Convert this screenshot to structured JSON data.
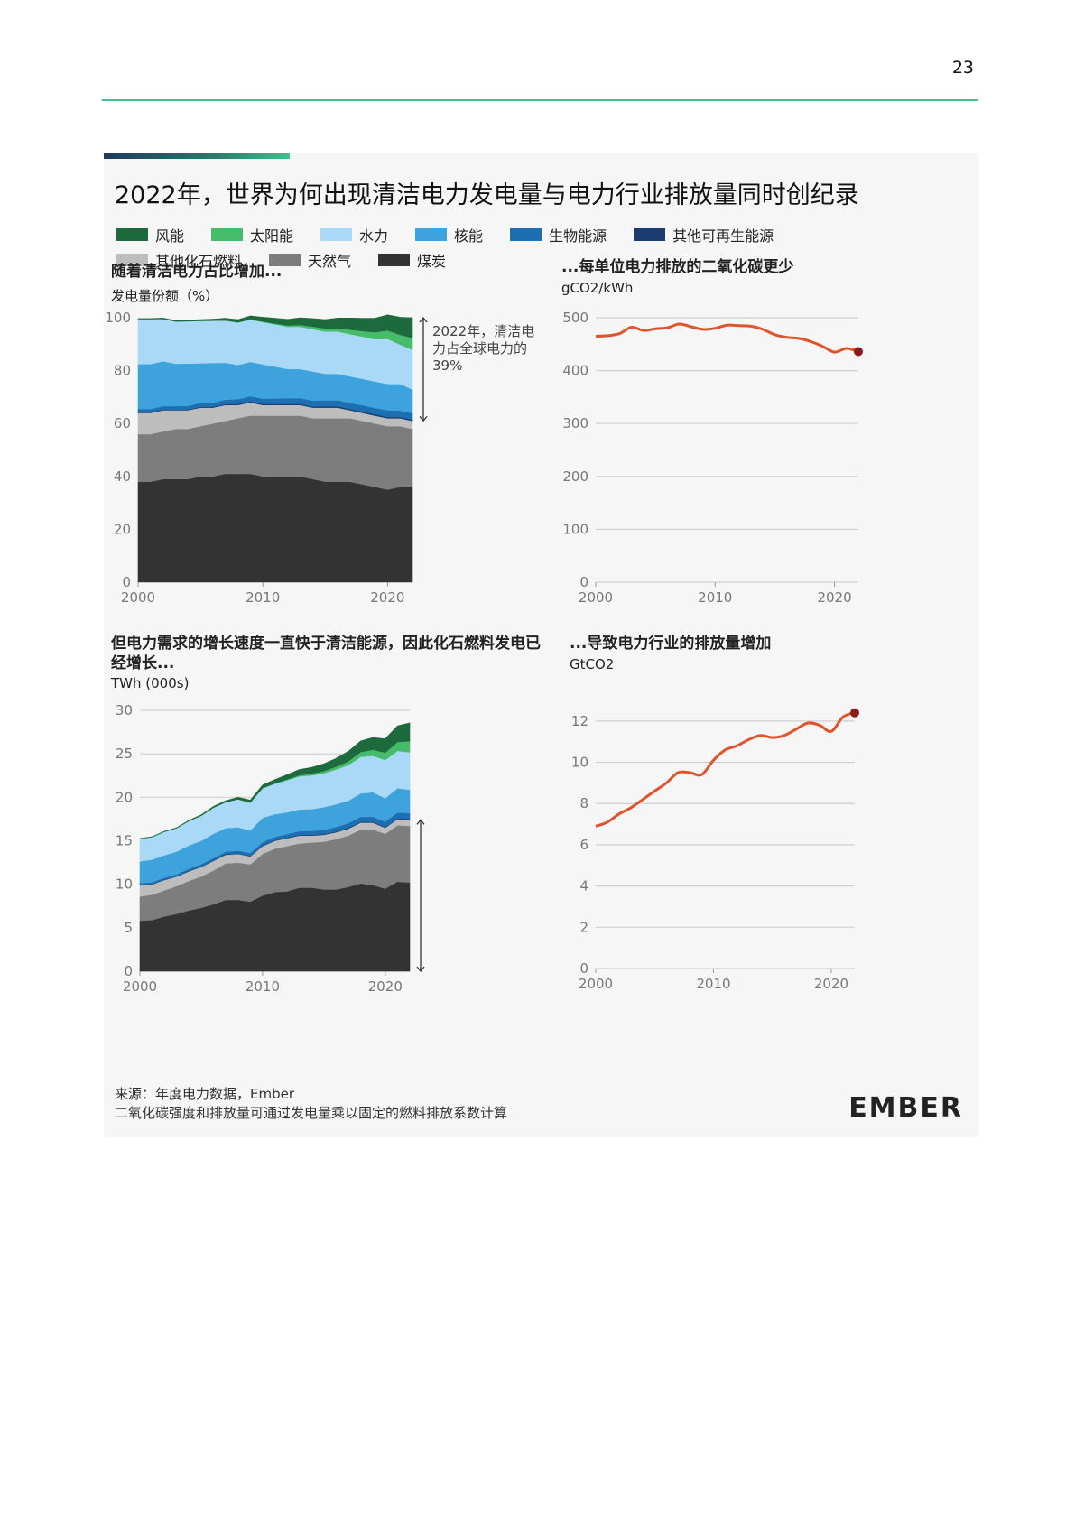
{
  "page": {
    "number": "23"
  },
  "figure": {
    "title": "2022年，世界为何出现清洁电力发电量与电力行业排放量同时创纪录",
    "legend": [
      {
        "label": "风能",
        "color": "#1d6a3c"
      },
      {
        "label": "太阳能",
        "color": "#46bb6a"
      },
      {
        "label": "水力",
        "color": "#a9d9f6"
      },
      {
        "label": "核能",
        "color": "#3ea3dc"
      },
      {
        "label": "生物能源",
        "color": "#1d6fb1"
      },
      {
        "label": "其他可再生能源",
        "color": "#1b3c6e"
      },
      {
        "label": "其他化石燃料",
        "color": "#bdbdbd"
      },
      {
        "label": "天然气",
        "color": "#7d7d7d"
      },
      {
        "label": "煤炭",
        "color": "#333333"
      }
    ],
    "source": {
      "line1": "来源：年度电力数据，Ember",
      "line2": "二氧化碳强度和排放量可通过发电量乘以固定的燃料排放系数计算"
    },
    "logo": "EMBER"
  },
  "chart_data": [
    {
      "id": "share",
      "type": "area",
      "title": "随着清洁电力占比增加...",
      "ylabel": "发电量份额（%）",
      "xlim": [
        2000,
        2022
      ],
      "ylim": [
        0,
        100
      ],
      "xticks": [
        2000,
        2010,
        2020
      ],
      "yticks": [
        0,
        20,
        40,
        60,
        80,
        100
      ],
      "annotation": "2022年，清洁电力占全球电力的39%",
      "x": [
        2000,
        2001,
        2002,
        2003,
        2004,
        2005,
        2006,
        2007,
        2008,
        2009,
        2010,
        2011,
        2012,
        2013,
        2014,
        2015,
        2016,
        2017,
        2018,
        2019,
        2020,
        2021,
        2022
      ],
      "series": [
        {
          "name": "煤炭",
          "color": "#333333",
          "values": [
            38,
            38,
            39,
            39,
            39,
            40,
            40,
            41,
            41,
            41,
            40,
            40,
            40,
            40,
            39,
            38,
            38,
            38,
            37,
            36,
            35,
            36,
            36
          ]
        },
        {
          "name": "天然气",
          "color": "#7d7d7d",
          "values": [
            18,
            18,
            18,
            19,
            19,
            19,
            20,
            20,
            21,
            22,
            23,
            23,
            23,
            23,
            23,
            24,
            24,
            24,
            24,
            24,
            24,
            23,
            22
          ]
        },
        {
          "name": "其他化石燃料",
          "color": "#bdbdbd",
          "values": [
            8,
            8,
            8,
            7,
            7,
            7,
            6,
            6,
            5,
            5,
            4,
            4,
            4,
            4,
            4,
            4,
            4,
            3,
            3,
            3,
            3,
            3,
            3
          ]
        },
        {
          "name": "其他可再生能源",
          "color": "#1b3c6e",
          "values": [
            0.3,
            0.3,
            0.3,
            0.3,
            0.3,
            0.3,
            0.3,
            0.3,
            0.4,
            0.4,
            0.4,
            0.4,
            0.4,
            0.4,
            0.4,
            0.5,
            0.5,
            0.5,
            0.5,
            0.5,
            0.5,
            0.5,
            0.5
          ]
        },
        {
          "name": "生物能源",
          "color": "#1d6fb1",
          "values": [
            1.2,
            1.2,
            1.3,
            1.3,
            1.4,
            1.5,
            1.6,
            1.7,
            1.8,
            1.9,
            2,
            2.1,
            2.2,
            2.2,
            2.3,
            2.3,
            2.3,
            2.3,
            2.4,
            2.4,
            2.5,
            2.4,
            2.4
          ]
        },
        {
          "name": "核能",
          "color": "#3ea3dc",
          "values": [
            17,
            17,
            17,
            16,
            16,
            15,
            15,
            14,
            13,
            13,
            13,
            12,
            11,
            11,
            11,
            10,
            10,
            10,
            10,
            10,
            10,
            10,
            9
          ]
        },
        {
          "name": "水力",
          "color": "#a9d9f6",
          "values": [
            17,
            17,
            16,
            16,
            16,
            16,
            16,
            16,
            16,
            16,
            16,
            16,
            16,
            16,
            16,
            16,
            16,
            16,
            16,
            16,
            17,
            15,
            15
          ]
        },
        {
          "name": "太阳能",
          "color": "#46bb6a",
          "values": [
            0,
            0,
            0,
            0,
            0,
            0,
            0,
            0,
            0.1,
            0.1,
            0.2,
            0.3,
            0.5,
            0.7,
            1,
            1.1,
            1.3,
            1.7,
            2.1,
            2.6,
            3.2,
            3.7,
            4.5
          ]
        },
        {
          "name": "风能",
          "color": "#1d6a3c",
          "values": [
            0.2,
            0.2,
            0.3,
            0.3,
            0.4,
            0.5,
            0.6,
            0.8,
            1,
            1.3,
            1.6,
            2,
            2.3,
            2.7,
            3,
            3.4,
            3.8,
            4.4,
            4.8,
            5.3,
            5.9,
            6.6,
            7.6
          ]
        }
      ]
    },
    {
      "id": "intensity",
      "type": "line",
      "title": "...每单位电力排放的二氧化碳更少",
      "ylabel": "gCO2/kWh",
      "xlim": [
        2000,
        2022
      ],
      "ylim": [
        0,
        500
      ],
      "xticks": [
        2000,
        2010,
        2020
      ],
      "yticks": [
        0,
        100,
        200,
        300,
        400,
        500
      ],
      "color": "#e0542c",
      "x": [
        2000,
        2001,
        2002,
        2003,
        2004,
        2005,
        2006,
        2007,
        2008,
        2009,
        2010,
        2011,
        2012,
        2013,
        2014,
        2015,
        2016,
        2017,
        2018,
        2019,
        2020,
        2021,
        2022
      ],
      "values": [
        465,
        466,
        470,
        482,
        476,
        479,
        481,
        488,
        483,
        478,
        480,
        486,
        485,
        484,
        478,
        468,
        463,
        461,
        455,
        446,
        435,
        442,
        436
      ]
    },
    {
      "id": "generation",
      "type": "area",
      "title": "但电力需求的增长速度一直快于清洁能源，因此化石燃料发电已经增长...",
      "ylabel": "TWh (000s)",
      "xlim": [
        2000,
        2022
      ],
      "ylim": [
        0,
        30
      ],
      "xticks": [
        2000,
        2010,
        2020
      ],
      "yticks": [
        0,
        5,
        10,
        15,
        20,
        25,
        30
      ],
      "x": [
        2000,
        2001,
        2002,
        2003,
        2004,
        2005,
        2006,
        2007,
        2008,
        2009,
        2010,
        2011,
        2012,
        2013,
        2014,
        2015,
        2016,
        2017,
        2018,
        2019,
        2020,
        2021,
        2022
      ],
      "series": [
        {
          "name": "煤炭",
          "color": "#333333",
          "values": [
            5.8,
            5.9,
            6.3,
            6.6,
            7,
            7.3,
            7.7,
            8.2,
            8.2,
            8,
            8.7,
            9.1,
            9.2,
            9.6,
            9.6,
            9.4,
            9.4,
            9.7,
            10.1,
            9.9,
            9.5,
            10.3,
            10.2
          ]
        },
        {
          "name": "天然气",
          "color": "#7d7d7d",
          "values": [
            2.8,
            2.9,
            3,
            3.2,
            3.4,
            3.6,
            3.9,
            4.2,
            4.3,
            4.3,
            4.8,
            5,
            5.2,
            5.1,
            5.2,
            5.5,
            5.8,
            5.9,
            6.2,
            6.4,
            6.3,
            6.5,
            6.5
          ]
        },
        {
          "name": "其他化石燃料",
          "color": "#bdbdbd",
          "values": [
            1.3,
            1.2,
            1.2,
            1.1,
            1.1,
            1.1,
            1.1,
            1,
            1,
            0.9,
            0.9,
            0.9,
            0.9,
            0.9,
            0.8,
            0.8,
            0.8,
            0.8,
            0.8,
            0.8,
            0.7,
            0.7,
            0.7
          ]
        },
        {
          "name": "其他可再生能源",
          "color": "#1b3c6e",
          "values": [
            0.05,
            0.05,
            0.05,
            0.05,
            0.06,
            0.06,
            0.06,
            0.07,
            0.07,
            0.07,
            0.08,
            0.08,
            0.08,
            0.09,
            0.09,
            0.09,
            0.1,
            0.1,
            0.1,
            0.1,
            0.1,
            0.1,
            0.1
          ]
        },
        {
          "name": "生物能源",
          "color": "#1d6fb1",
          "values": [
            0.18,
            0.19,
            0.2,
            0.21,
            0.22,
            0.24,
            0.26,
            0.28,
            0.3,
            0.32,
            0.36,
            0.38,
            0.4,
            0.42,
            0.45,
            0.48,
            0.5,
            0.52,
            0.55,
            0.58,
            0.6,
            0.65,
            0.68
          ]
        },
        {
          "name": "核能",
          "color": "#3ea3dc",
          "values": [
            2.5,
            2.6,
            2.6,
            2.6,
            2.7,
            2.7,
            2.8,
            2.7,
            2.7,
            2.6,
            2.8,
            2.6,
            2.5,
            2.5,
            2.5,
            2.6,
            2.6,
            2.6,
            2.7,
            2.8,
            2.7,
            2.8,
            2.7
          ]
        },
        {
          "name": "水力",
          "color": "#a9d9f6",
          "values": [
            2.6,
            2.6,
            2.7,
            2.7,
            2.8,
            2.9,
            3,
            3,
            3.2,
            3.2,
            3.4,
            3.5,
            3.7,
            3.8,
            3.9,
            3.9,
            4,
            4.1,
            4.2,
            4.2,
            4.4,
            4.3,
            4.3
          ]
        },
        {
          "name": "太阳能",
          "color": "#46bb6a",
          "values": [
            0,
            0,
            0,
            0,
            0,
            0,
            0,
            0,
            0.01,
            0.02,
            0.03,
            0.06,
            0.1,
            0.14,
            0.19,
            0.25,
            0.33,
            0.44,
            0.56,
            0.69,
            0.84,
            1.02,
            1.28
          ]
        },
        {
          "name": "风能",
          "color": "#1d6a3c",
          "values": [
            0.03,
            0.04,
            0.05,
            0.06,
            0.08,
            0.1,
            0.13,
            0.17,
            0.22,
            0.27,
            0.34,
            0.43,
            0.52,
            0.64,
            0.71,
            0.83,
            0.96,
            1.14,
            1.27,
            1.42,
            1.59,
            1.85,
            2.1
          ]
        }
      ]
    },
    {
      "id": "emissions",
      "type": "line",
      "title": "...导致电力行业的排放量增加",
      "ylabel": "GtCO2",
      "xlim": [
        2000,
        2022
      ],
      "ylim": [
        0,
        13
      ],
      "xticks": [
        2000,
        2010,
        2020
      ],
      "yticks": [
        0,
        2,
        4,
        6,
        8,
        10,
        12
      ],
      "color": "#e0542c",
      "x": [
        2000,
        2001,
        2002,
        2003,
        2004,
        2005,
        2006,
        2007,
        2008,
        2009,
        2010,
        2011,
        2012,
        2013,
        2014,
        2015,
        2016,
        2017,
        2018,
        2019,
        2020,
        2021,
        2022
      ],
      "values": [
        6.9,
        7.1,
        7.5,
        7.8,
        8.2,
        8.6,
        9,
        9.5,
        9.5,
        9.4,
        10.1,
        10.6,
        10.8,
        11.1,
        11.3,
        11.2,
        11.3,
        11.6,
        11.9,
        11.8,
        11.5,
        12.2,
        12.4
      ]
    }
  ]
}
